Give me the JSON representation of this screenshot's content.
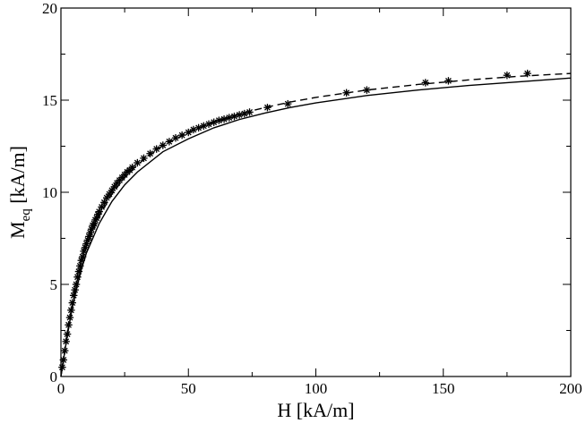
{
  "chart_data": {
    "type": "scatter",
    "xlabel": "H [kA/m]",
    "ylabel_main": "M",
    "ylabel_sub": "eq",
    "ylabel_unit": " [kA/m]",
    "xlim": [
      0,
      200
    ],
    "ylim": [
      0,
      20
    ],
    "xticks": [
      "0",
      "50",
      "100",
      "150",
      "200"
    ],
    "yticks": [
      "0",
      "5",
      "10",
      "15",
      "20"
    ],
    "xtick_values": [
      0,
      50,
      100,
      150,
      200
    ],
    "ytick_values": [
      0,
      5,
      10,
      15,
      20
    ],
    "grid": false,
    "legend": "none",
    "series": [
      {
        "style": "asterisk-markers",
        "x": [
          0.5,
          1.0,
          1.5,
          2.0,
          2.5,
          3.0,
          3.5,
          4.0,
          4.5,
          5.0,
          5.5,
          6.0,
          6.5,
          7.0,
          7.5,
          8.0,
          8.5,
          9.0,
          9.5,
          10.0,
          10.5,
          11.0,
          11.5,
          12.0,
          12.5,
          13.0,
          13.5,
          14.0,
          14.5,
          15.0,
          16.0,
          17.0,
          18.0,
          19.0,
          20.0,
          21.0,
          22.0,
          23.0,
          24.0,
          25.0,
          26.0,
          27.0,
          28.0,
          30.0,
          32.5,
          35.0,
          37.5,
          40.0,
          42.5,
          45.0,
          47.5,
          50.0,
          52.0,
          54.0,
          56.0,
          58.0,
          60.0,
          62.0,
          64.0,
          66.0,
          68.0,
          70.0,
          72.0,
          74.0,
          81.0,
          89.0,
          112.0,
          120.0,
          143.0,
          152.0,
          175.0,
          183.0
        ],
        "y": [
          0.5,
          0.9,
          1.4,
          1.9,
          2.3,
          2.8,
          3.2,
          3.6,
          4.0,
          4.4,
          4.7,
          5.0,
          5.4,
          5.7,
          6.0,
          6.3,
          6.5,
          6.8,
          7.0,
          7.2,
          7.4,
          7.6,
          7.8,
          8.0,
          8.2,
          8.3,
          8.5,
          8.6,
          8.8,
          8.95,
          9.2,
          9.45,
          9.7,
          9.9,
          10.1,
          10.3,
          10.5,
          10.65,
          10.8,
          10.95,
          11.1,
          11.2,
          11.35,
          11.6,
          11.85,
          12.1,
          12.35,
          12.55,
          12.75,
          12.95,
          13.1,
          13.25,
          13.4,
          13.5,
          13.6,
          13.7,
          13.8,
          13.9,
          13.97,
          14.05,
          14.12,
          14.2,
          14.27,
          14.35,
          14.6,
          14.8,
          15.4,
          15.55,
          15.95,
          16.05,
          16.35,
          16.45
        ]
      },
      {
        "style": "solid-line",
        "x": [
          0,
          1,
          2,
          4,
          6,
          8,
          10,
          15,
          20,
          25,
          30,
          40,
          50,
          60,
          70,
          80,
          90,
          100,
          120,
          140,
          160,
          180,
          200
        ],
        "y": [
          0,
          0.9,
          1.8,
          3.4,
          4.7,
          5.8,
          6.7,
          8.3,
          9.5,
          10.4,
          11.1,
          12.2,
          12.9,
          13.5,
          13.95,
          14.3,
          14.6,
          14.85,
          15.25,
          15.55,
          15.8,
          16.0,
          16.2
        ]
      },
      {
        "style": "dashed-line",
        "x": [
          0,
          1,
          2,
          4,
          6,
          8,
          10,
          15,
          20,
          25,
          30,
          40,
          50,
          60,
          70,
          80,
          90,
          100,
          120,
          140,
          160,
          180,
          200
        ],
        "y": [
          0,
          0.95,
          1.9,
          3.6,
          5.0,
          6.1,
          7.05,
          8.7,
          9.9,
          10.8,
          11.5,
          12.55,
          13.25,
          13.8,
          14.25,
          14.6,
          14.9,
          15.15,
          15.55,
          15.85,
          16.1,
          16.3,
          16.45
        ]
      }
    ]
  }
}
